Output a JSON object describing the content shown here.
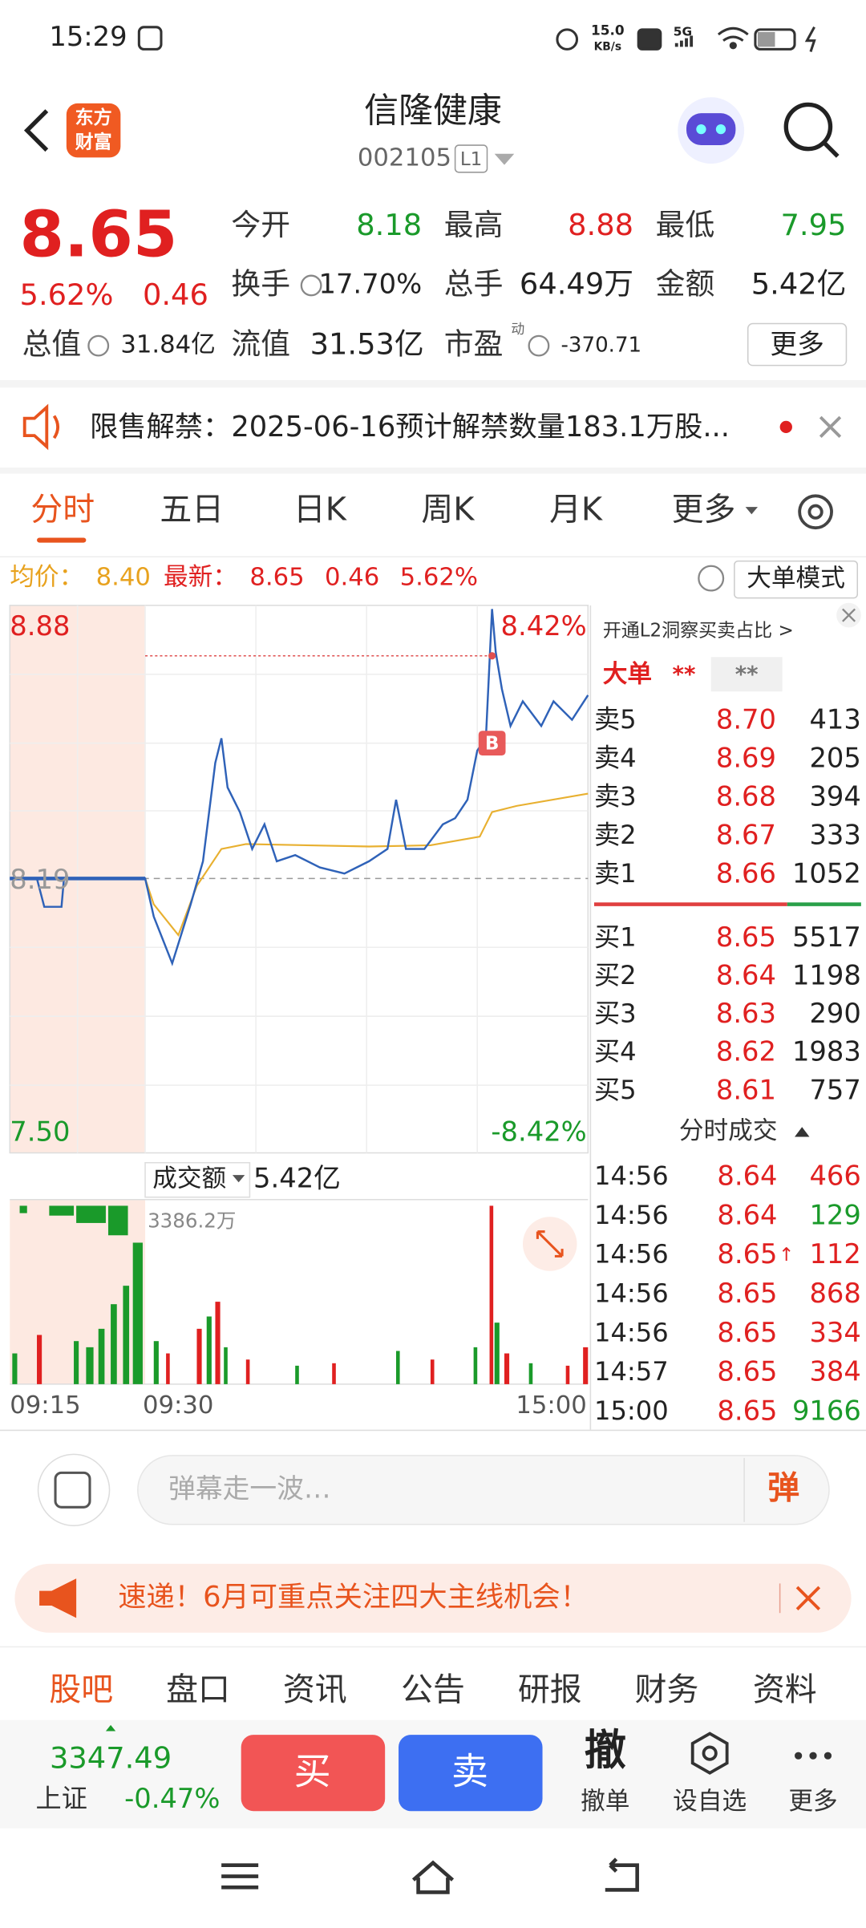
{
  "status_bar": {
    "time": "15:29",
    "net_speed": "15.0",
    "net_unit": "KB/s",
    "signal": "5G"
  },
  "header": {
    "logo_lines": [
      "东方",
      "财富"
    ],
    "title": "信隆健康",
    "code": "002105",
    "level": "L1"
  },
  "quote": {
    "price": "8.65",
    "change_pct": "5.62%",
    "change": "0.46",
    "fields": [
      {
        "label": "今开",
        "value": "8.18"
      },
      {
        "label": "最高",
        "value": "8.88"
      },
      {
        "label": "最低",
        "value": "7.95"
      },
      {
        "label": "换手",
        "value": "17.70%"
      },
      {
        "label": "总手",
        "value": "64.49万"
      },
      {
        "label": "金额",
        "value": "5.42亿"
      },
      {
        "label": "总值",
        "value": "31.84亿"
      },
      {
        "label": "流值",
        "value": "31.53亿"
      },
      {
        "label": "市盈",
        "value": "-370.71"
      }
    ],
    "pe_tag": "动",
    "more": "更多"
  },
  "notice": {
    "text": "限售解禁：2025-06-16预计解禁数量183.1万股..."
  },
  "tabs": [
    "分时",
    "五日",
    "日K",
    "周K",
    "月K",
    "更多"
  ],
  "chart_info": {
    "avg_label": "均价：",
    "avg": "8.40",
    "latest_label": "最新：",
    "latest": "8.65",
    "change": "0.46",
    "change_pct": "5.62%",
    "mode": "大单模式"
  },
  "chart": {
    "high": "8.88",
    "high_pct": "8.42%",
    "prev_close": "8.19",
    "low": "7.50",
    "low_pct": "-8.42%",
    "marker": "B",
    "volume_label": "成交额",
    "volume_total": "5.42亿",
    "volume_max": "3386.2万",
    "times": [
      "09:15",
      "09:30",
      "15:00"
    ]
  },
  "order_book": {
    "l2_promo": "开通L2洞察买卖占比 >",
    "big_order": "大单",
    "big_order_values": [
      "**",
      "**"
    ],
    "asks": [
      {
        "label": "卖5",
        "price": "8.70",
        "volume": "413"
      },
      {
        "label": "卖4",
        "price": "8.69",
        "volume": "205"
      },
      {
        "label": "卖3",
        "price": "8.68",
        "volume": "394"
      },
      {
        "label": "卖2",
        "price": "8.67",
        "volume": "333"
      },
      {
        "label": "卖1",
        "price": "8.66",
        "volume": "1052"
      }
    ],
    "bids": [
      {
        "label": "买1",
        "price": "8.65",
        "volume": "5517"
      },
      {
        "label": "买2",
        "price": "8.64",
        "volume": "1198"
      },
      {
        "label": "买3",
        "price": "8.63",
        "volume": "290"
      },
      {
        "label": "买4",
        "price": "8.62",
        "volume": "1983"
      },
      {
        "label": "买5",
        "price": "8.61",
        "volume": "757"
      }
    ],
    "trades_title": "分时成交",
    "trades": [
      {
        "time": "14:56",
        "price": "8.64",
        "volume": "466",
        "color": "#e02020"
      },
      {
        "time": "14:56",
        "price": "8.64",
        "volume": "129",
        "color": "#1a9a2a"
      },
      {
        "time": "14:56",
        "price": "8.65",
        "flag": "↑",
        "volume": "112",
        "color": "#e02020"
      },
      {
        "time": "14:56",
        "price": "8.65",
        "volume": "868",
        "color": "#e02020"
      },
      {
        "time": "14:56",
        "price": "8.65",
        "volume": "334",
        "color": "#e02020"
      },
      {
        "time": "14:57",
        "price": "8.65",
        "volume": "384",
        "color": "#e02020"
      },
      {
        "time": "15:00",
        "price": "8.65",
        "volume": "9166",
        "color": "#1a9a2a"
      }
    ]
  },
  "comment": {
    "placeholder": "弹幕走一波…",
    "button": "弹"
  },
  "banner": {
    "text": "速递！6月可重点关注四大主线机会！"
  },
  "bottom_tabs": [
    "股吧",
    "盘口",
    "资讯",
    "公告",
    "研报",
    "财务",
    "资料"
  ],
  "index": {
    "value": "3347.49",
    "name": "上证",
    "change": "-0.47%"
  },
  "actions": {
    "buy": "买",
    "sell": "卖",
    "cancel_icon": "撤",
    "cancel": "撤单",
    "watch": "设自选",
    "more": "更多"
  }
}
